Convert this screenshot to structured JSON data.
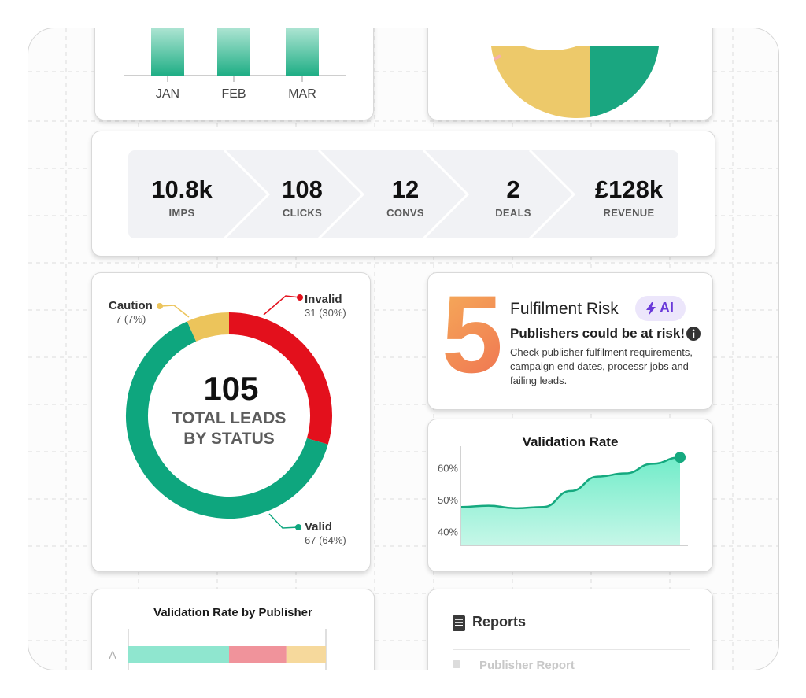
{
  "funnel": {
    "stages": [
      {
        "value": "10.8k",
        "label": "IMPS"
      },
      {
        "value": "108",
        "label": "CLICKS"
      },
      {
        "value": "12",
        "label": "CONVS"
      },
      {
        "value": "2",
        "label": "DEALS"
      },
      {
        "value": "£128k",
        "label": "REVENUE"
      }
    ]
  },
  "monthly_bars": {
    "months": [
      "JAN",
      "FEB",
      "MAR"
    ]
  },
  "leads": {
    "total": "105",
    "label": "TOTAL LEADS BY STATUS",
    "statuses": [
      {
        "name": "Invalid",
        "count": "31 (30%)",
        "color": "#e3101c"
      },
      {
        "name": "Valid",
        "count": "67 (64%)",
        "color": "#0ea67e"
      },
      {
        "name": "Caution",
        "count": "7 (7%)",
        "color": "#ecc45b"
      }
    ]
  },
  "risk": {
    "number": "5",
    "title": "Fulfilment Risk",
    "badge": "AI",
    "subtitle": "Publishers could be at risk!",
    "description": "Check publisher fulfilment requirements, campaign end dates, processr jobs and failing leads."
  },
  "chart_data": [
    {
      "type": "pie",
      "title": "TOTAL LEADS BY STATUS",
      "categories": [
        "Invalid",
        "Valid",
        "Caution"
      ],
      "values": [
        31,
        67,
        7
      ],
      "colors": [
        "#e3101c",
        "#0ea67e",
        "#ecc45b"
      ]
    },
    {
      "type": "area",
      "title": "Validation Rate",
      "x": [
        0,
        1,
        2,
        3,
        4,
        5,
        6,
        7,
        8
      ],
      "y": [
        48,
        48.4,
        47.6,
        48,
        53,
        57.5,
        58.5,
        61.5,
        63.5
      ],
      "yticks": [
        "40%",
        "50%",
        "60%"
      ],
      "ylim": [
        36,
        67
      ],
      "color": "#15a97f",
      "grid": false
    },
    {
      "type": "bar",
      "title": "Validation Rate by Publisher",
      "categories": [
        "A"
      ],
      "series": [
        {
          "values": [
            51
          ]
        },
        {
          "values": [
            29
          ]
        },
        {
          "values": [
            20
          ]
        }
      ],
      "colors": [
        "#8fe6cf",
        "#f0939b",
        "#f6d99c"
      ]
    }
  ],
  "reports": {
    "title": "Reports",
    "items": [
      "Publisher Report"
    ]
  }
}
